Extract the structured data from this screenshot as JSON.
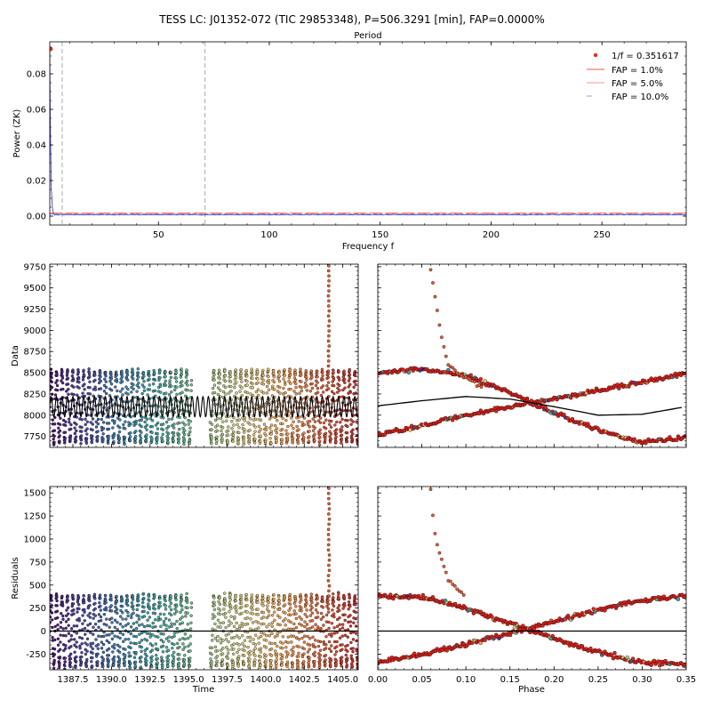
{
  "figure": {
    "title": "TESS LC: J01352-072 (TIC 29853348), P=506.3291 [min], FAP=0.0000%"
  },
  "chart_data": [
    {
      "id": "periodogram",
      "type": "line",
      "top_label": "Period",
      "xlabel": "Frequency f",
      "ylabel": "Power (ZK)",
      "xlim": [
        1,
        288
      ],
      "ylim": [
        -0.005,
        0.098
      ],
      "xticks": [
        50,
        100,
        150,
        200,
        250
      ],
      "yticks": [
        0.0,
        0.02,
        0.04,
        0.06,
        0.08
      ],
      "ytick_labels": [
        "0.00",
        "0.02",
        "0.04",
        "0.06",
        "0.08"
      ],
      "peak": {
        "x": 1.0,
        "y": 0.094
      },
      "vlines_x": [
        6.6,
        71.0
      ],
      "fap_levels": [
        {
          "name": "FAP = 1.0%",
          "y": 0.0018,
          "color": "#e8584a",
          "dash": "14 4"
        },
        {
          "name": "FAP = 5.0%",
          "y": 0.0014,
          "color": "#f29a8e",
          "dash": "9 4"
        },
        {
          "name": "FAP = 10.0%",
          "y": 0.0011,
          "color": "#9b8fd6",
          "dash": "4 3"
        }
      ],
      "legend": {
        "peak_label": "1/f = 0.351617",
        "placement": "top-right"
      },
      "grid": false
    },
    {
      "id": "data-vs-time",
      "type": "scatter",
      "ylabel": "Data",
      "xlim": [
        1386.0,
        1406.0
      ],
      "ylim": [
        7620,
        9780
      ],
      "yticks": [
        7750,
        8000,
        8250,
        8500,
        8750,
        9000,
        9250,
        9500,
        9750
      ],
      "period_days": 0.351617,
      "mean": 8100,
      "amplitude": 420,
      "model_amplitude": 120,
      "segments": [
        [
          1386.0,
          1395.2
        ],
        [
          1396.4,
          1406.0
        ]
      ],
      "flare": {
        "x": 1404.1,
        "y_max": 9760
      },
      "grid": false
    },
    {
      "id": "data-vs-phase",
      "type": "scatter",
      "xlim": [
        0.0,
        0.35
      ],
      "ylim": [
        7620,
        9780
      ],
      "branch_a": [
        [
          0.0,
          8500
        ],
        [
          0.05,
          8540
        ],
        [
          0.1,
          8470
        ],
        [
          0.15,
          8260
        ],
        [
          0.2,
          8030
        ],
        [
          0.25,
          7820
        ],
        [
          0.3,
          7680
        ],
        [
          0.35,
          7740
        ]
      ],
      "branch_b": [
        [
          0.0,
          7760
        ],
        [
          0.05,
          7880
        ],
        [
          0.1,
          8000
        ],
        [
          0.15,
          8100
        ],
        [
          0.2,
          8200
        ],
        [
          0.25,
          8290
        ],
        [
          0.3,
          8390
        ],
        [
          0.35,
          8490
        ]
      ],
      "model": [
        [
          0.0,
          8110
        ],
        [
          0.05,
          8170
        ],
        [
          0.1,
          8220
        ],
        [
          0.15,
          8190
        ],
        [
          0.2,
          8100
        ],
        [
          0.25,
          8000
        ],
        [
          0.3,
          8010
        ],
        [
          0.35,
          8100
        ]
      ],
      "flare": [
        [
          0.06,
          9720
        ],
        [
          0.065,
          9400
        ],
        [
          0.07,
          9050
        ],
        [
          0.075,
          8800
        ],
        [
          0.08,
          8600
        ],
        [
          0.09,
          8500
        ],
        [
          0.1,
          8440
        ],
        [
          0.11,
          8380
        ],
        [
          0.12,
          8310
        ]
      ],
      "grid": false
    },
    {
      "id": "residuals-vs-time",
      "type": "scatter",
      "xlabel": "Time",
      "ylabel": "Residuals",
      "xlim": [
        1386.0,
        1406.0
      ],
      "ylim": [
        -420,
        1570
      ],
      "xticks": [
        1387.5,
        1390.0,
        1392.5,
        1395.0,
        1397.5,
        1400.0,
        1402.5,
        1405.0
      ],
      "xtick_labels": [
        "1387.5",
        "1390.0",
        "1392.5",
        "1395.0",
        "1397.5",
        "1400.0",
        "1402.5",
        "1405.0"
      ],
      "yticks": [
        -250,
        0,
        250,
        500,
        750,
        1000,
        1250,
        1500
      ],
      "amplitude": 380,
      "flare": {
        "x": 1404.1,
        "y_max": 1550
      },
      "grid": false
    },
    {
      "id": "residuals-vs-phase",
      "type": "scatter",
      "xlabel": "Phase",
      "xlim": [
        0.0,
        0.35
      ],
      "ylim": [
        -420,
        1570
      ],
      "xticks": [
        0.0,
        0.05,
        0.1,
        0.15,
        0.2,
        0.25,
        0.3,
        0.35
      ],
      "xtick_labels": [
        "0.00",
        "0.05",
        "0.10",
        "0.15",
        "0.20",
        "0.25",
        "0.30",
        "0.35"
      ],
      "branch_a": [
        [
          0.0,
          380
        ],
        [
          0.05,
          370
        ],
        [
          0.1,
          250
        ],
        [
          0.15,
          80
        ],
        [
          0.2,
          -80
        ],
        [
          0.25,
          -230
        ],
        [
          0.3,
          -340
        ],
        [
          0.35,
          -360
        ]
      ],
      "branch_b": [
        [
          0.0,
          -340
        ],
        [
          0.05,
          -260
        ],
        [
          0.1,
          -140
        ],
        [
          0.15,
          -20
        ],
        [
          0.2,
          110
        ],
        [
          0.25,
          230
        ],
        [
          0.3,
          330
        ],
        [
          0.35,
          380
        ]
      ],
      "flare": [
        [
          0.06,
          1540
        ],
        [
          0.063,
          1200
        ],
        [
          0.066,
          1000
        ],
        [
          0.07,
          850
        ],
        [
          0.075,
          700
        ],
        [
          0.08,
          560
        ],
        [
          0.09,
          450
        ],
        [
          0.1,
          380
        ]
      ],
      "grid": false
    }
  ],
  "palette": {
    "time_colors": [
      "#3b1a7a",
      "#3a4fb0",
      "#2c86b8",
      "#2ab0b0",
      "#55c49a",
      "#a7d98a",
      "#d8d07a",
      "#e7a24e",
      "#d9623a",
      "#c22e2e"
    ],
    "phase_point": "#d8261f",
    "phase_edge": "#2b0000",
    "model": "#000000",
    "vline": "#a9a9a9",
    "peak": "#e32a1f"
  }
}
